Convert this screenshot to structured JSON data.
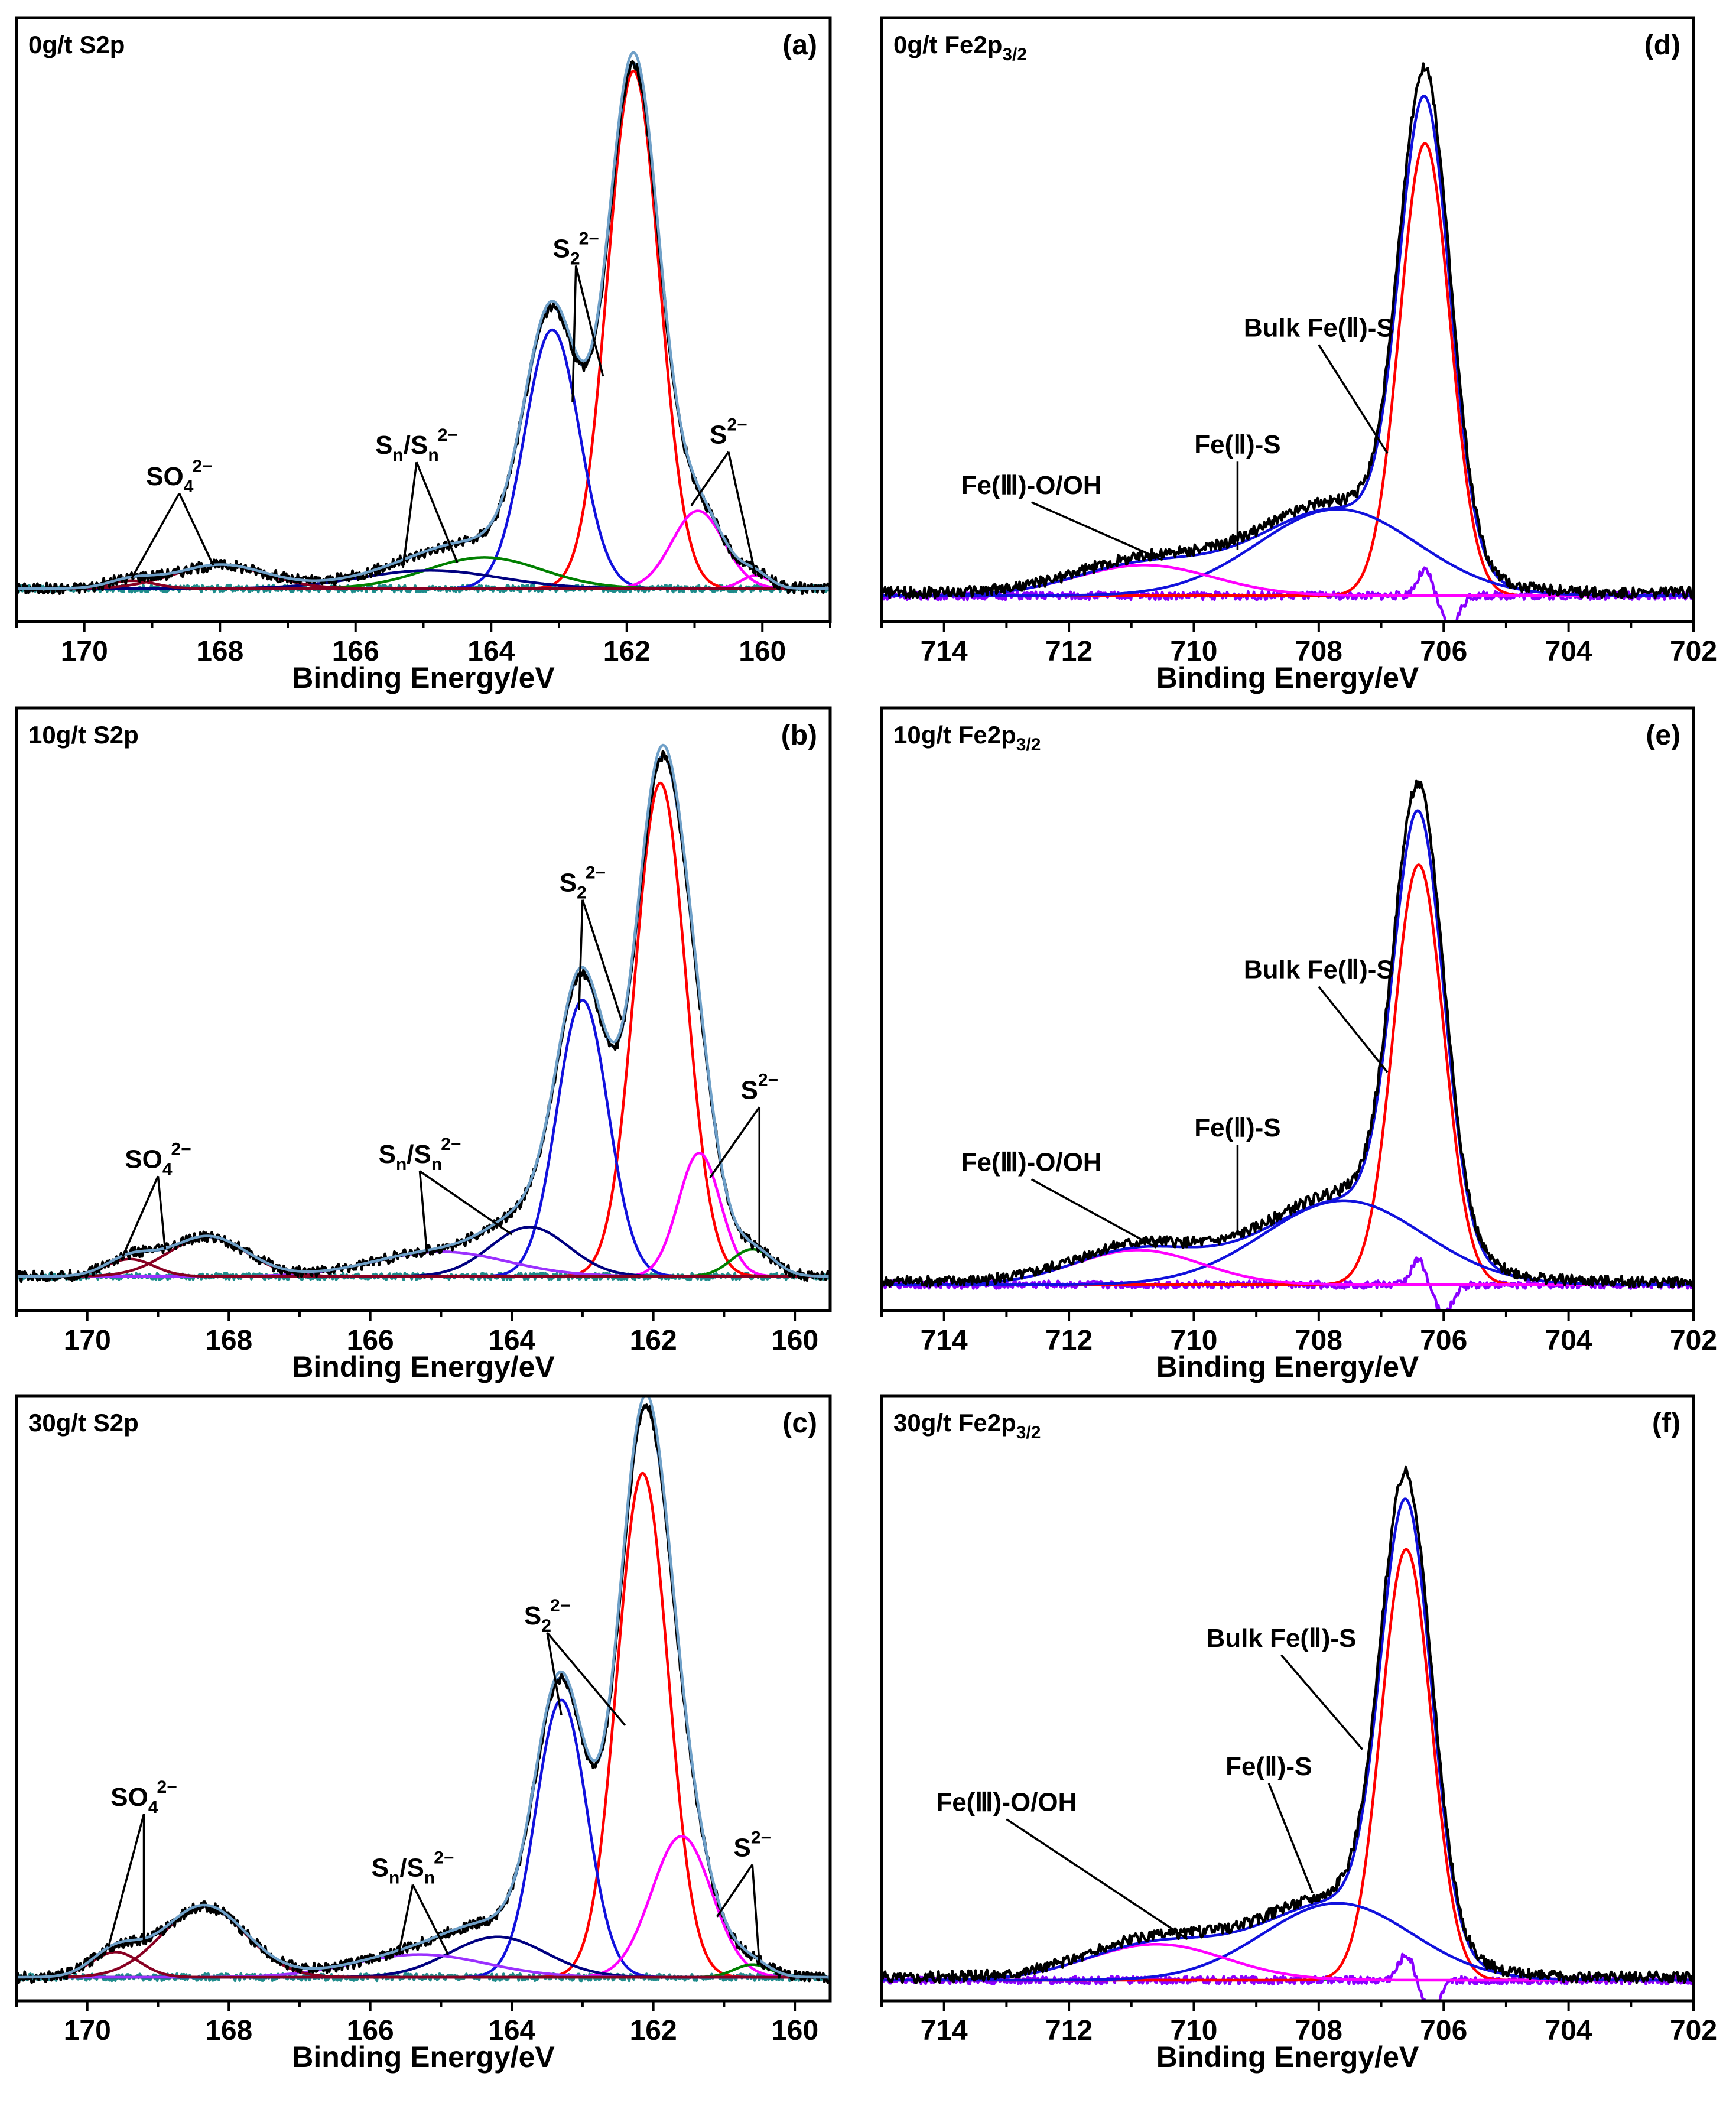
{
  "colors": {
    "raw": "#000000",
    "envelope": "#2f5f9a",
    "residual": "#1e8c8c",
    "baseline": "#1a8a1a",
    "red": "#ff0000",
    "blue": "#1111dd",
    "magenta": "#ff00ff",
    "green": "#008000",
    "darkred": "#880022",
    "navy": "#000080",
    "violet": "#9b30ff",
    "purple": "#8a00ff"
  },
  "chart_data": [
    {
      "type": "line",
      "id": "a",
      "letter": "(a)",
      "title": "0g/t S2p",
      "title_main": "0g/t S2p",
      "title_sub": "",
      "xlabel": "Binding Energy/eV",
      "xlim": [
        171,
        159
      ],
      "ylim": [
        0,
        100
      ],
      "xticks": [
        170,
        168,
        166,
        164,
        162,
        160
      ],
      "peaks": [
        {
          "center": 161.9,
          "height": 100,
          "fwhm": 0.9,
          "color": "red"
        },
        {
          "center": 163.1,
          "height": 50,
          "fwhm": 0.95,
          "color": "blue"
        },
        {
          "center": 160.95,
          "height": 15,
          "fwhm": 0.9,
          "color": "magenta"
        },
        {
          "center": 160.1,
          "height": 2.5,
          "fwhm": 0.5,
          "color": "magenta"
        },
        {
          "center": 164.1,
          "height": 6,
          "fwhm": 2.0,
          "color": "green"
        },
        {
          "center": 164.9,
          "height": 3.5,
          "fwhm": 2.4,
          "color": "navy"
        },
        {
          "center": 168.0,
          "height": 4.5,
          "fwhm": 1.6,
          "color": "darkred"
        },
        {
          "center": 169.3,
          "height": 1.5,
          "fwhm": 0.8,
          "color": "darkred"
        }
      ],
      "annotations": [
        {
          "label": "S",
          "sub": "2",
          "sup": "2−",
          "x": 162.75,
          "y": 64,
          "targets": [
            [
              162.8,
              36
            ],
            [
              162.35,
              41
            ]
          ]
        },
        {
          "label": "S",
          "sub": "",
          "sup": "2−",
          "x": 160.5,
          "y": 28,
          "targets": [
            [
              161.05,
              16
            ],
            [
              160.1,
              2.5
            ]
          ]
        },
        {
          "label": "S",
          "sub": "n",
          "sup": "",
          "x2label": "S",
          "sub2": "n",
          "sup2": "2−",
          "x": 165.1,
          "y": 26,
          "targets": [
            [
              165.3,
              4
            ],
            [
              164.5,
              5
            ]
          ]
        },
        {
          "label": "SO",
          "sub": "4",
          "sup": "2−",
          "x": 168.6,
          "y": 20,
          "targets": [
            [
              169.3,
              2
            ],
            [
              168.1,
              4.5
            ]
          ]
        }
      ]
    },
    {
      "type": "line",
      "id": "b",
      "letter": "(b)",
      "title": "10g/t S2p",
      "title_main": "10g/t S2p",
      "title_sub": "",
      "xlabel": "Binding Energy/eV",
      "xlim": [
        171,
        159.5
      ],
      "ylim": [
        0,
        100
      ],
      "xticks": [
        170,
        168,
        166,
        164,
        162,
        160
      ],
      "peaks": [
        {
          "center": 161.9,
          "height": 100,
          "fwhm": 0.85,
          "color": "red"
        },
        {
          "center": 163.0,
          "height": 56,
          "fwhm": 0.85,
          "color": "blue"
        },
        {
          "center": 161.35,
          "height": 25,
          "fwhm": 0.7,
          "color": "magenta"
        },
        {
          "center": 160.6,
          "height": 5.5,
          "fwhm": 0.7,
          "color": "green"
        },
        {
          "center": 163.75,
          "height": 10,
          "fwhm": 1.3,
          "color": "navy"
        },
        {
          "center": 165.0,
          "height": 5,
          "fwhm": 2.2,
          "color": "violet"
        },
        {
          "center": 168.3,
          "height": 8,
          "fwhm": 1.3,
          "color": "darkred"
        },
        {
          "center": 169.4,
          "height": 3.5,
          "fwhm": 0.8,
          "color": "darkred"
        }
      ],
      "annotations": [
        {
          "label": "S",
          "sub": "2",
          "sup": "2−",
          "x": 163.0,
          "y": 78,
          "targets": [
            [
              163.05,
              54
            ],
            [
              162.45,
              52
            ]
          ]
        },
        {
          "label": "S",
          "sub": "",
          "sup": "2−",
          "x": 160.5,
          "y": 36,
          "targets": [
            [
              161.2,
              20
            ],
            [
              160.5,
              6
            ]
          ]
        },
        {
          "label": "S",
          "sub": "n",
          "sup": "",
          "x2label": "S",
          "sub2": "n",
          "sup2": "2−",
          "x": 165.3,
          "y": 23,
          "targets": [
            [
              165.2,
              4.8
            ],
            [
              164.0,
              8.5
            ]
          ]
        },
        {
          "label": "SO",
          "sub": "4",
          "sup": "2−",
          "x": 169.0,
          "y": 22,
          "targets": [
            [
              169.5,
              4
            ],
            [
              168.9,
              5.5
            ]
          ]
        }
      ]
    },
    {
      "type": "line",
      "id": "c",
      "letter": "(c)",
      "title": "30g/t S2p",
      "title_main": "30g/t S2p",
      "title_sub": "",
      "xlabel": "Binding Energy/eV",
      "xlim": [
        171,
        159.5
      ],
      "ylim": [
        0,
        100
      ],
      "xticks": [
        170,
        168,
        166,
        164,
        162,
        160
      ],
      "peaks": [
        {
          "center": 162.15,
          "height": 100,
          "fwhm": 0.85,
          "color": "red"
        },
        {
          "center": 163.3,
          "height": 55,
          "fwhm": 0.85,
          "color": "blue"
        },
        {
          "center": 161.6,
          "height": 28,
          "fwhm": 1.0,
          "color": "magenta"
        },
        {
          "center": 160.6,
          "height": 2.5,
          "fwhm": 0.6,
          "color": "green"
        },
        {
          "center": 164.2,
          "height": 8,
          "fwhm": 1.6,
          "color": "navy"
        },
        {
          "center": 165.3,
          "height": 4.5,
          "fwhm": 2.2,
          "color": "violet"
        },
        {
          "center": 168.35,
          "height": 14,
          "fwhm": 1.4,
          "color": "darkred"
        },
        {
          "center": 169.6,
          "height": 5,
          "fwhm": 0.8,
          "color": "darkred"
        }
      ],
      "annotations": [
        {
          "label": "S",
          "sub": "2",
          "sup": "2−",
          "x": 163.5,
          "y": 70,
          "targets": [
            [
              163.3,
              52
            ],
            [
              162.4,
              50
            ]
          ]
        },
        {
          "label": "S",
          "sub": "",
          "sup": "2−",
          "x": 160.6,
          "y": 24,
          "targets": [
            [
              161.1,
              12
            ],
            [
              160.5,
              2.5
            ]
          ]
        },
        {
          "label": "S",
          "sub": "n",
          "sup": "",
          "x2label": "S",
          "sub2": "n",
          "sup2": "2−",
          "x": 165.4,
          "y": 20,
          "targets": [
            [
              165.6,
              4.5
            ],
            [
              164.9,
              4.5
            ]
          ]
        },
        {
          "label": "SO",
          "sub": "4",
          "sup": "2−",
          "x": 169.2,
          "y": 34,
          "targets": [
            [
              169.7,
              6
            ],
            [
              169.2,
              7
            ]
          ]
        }
      ]
    },
    {
      "type": "line",
      "id": "d",
      "letter": "(d)",
      "title": "0g/t Fe2p3/2",
      "title_main": "0g/t Fe2p",
      "title_sub": "3/2",
      "xlabel": "Binding Energy/eV",
      "xlim": [
        715,
        702
      ],
      "ylim": [
        -3,
        100
      ],
      "xticks": [
        714,
        712,
        710,
        708,
        706,
        704,
        702
      ],
      "peaks": [
        {
          "center": 706.3,
          "height": 89,
          "fwhm": 0.95,
          "color": "red"
        },
        {
          "center": 707.7,
          "height": 17,
          "fwhm": 3.0,
          "color": "blue"
        },
        {
          "center": 710.8,
          "height": 6,
          "fwhm": 2.6,
          "color": "magenta"
        }
      ],
      "annotations": [
        {
          "label": "Bulk Fe(Ⅱ)-S",
          "x": 708.0,
          "y": 51,
          "targets": [
            [
              706.9,
              28
            ]
          ]
        },
        {
          "label": "Fe(Ⅱ)-S",
          "x": 709.3,
          "y": 28,
          "targets": [
            [
              709.3,
              9
            ]
          ]
        },
        {
          "label": "Fe(Ⅲ)-O/OH",
          "x": 712.6,
          "y": 20,
          "targets": [
            [
              710.5,
              7
            ]
          ]
        }
      ]
    },
    {
      "type": "line",
      "id": "e",
      "letter": "(e)",
      "title": "10g/t Fe2p3/2",
      "title_main": "10g/t Fe2p",
      "title_sub": "3/2",
      "xlabel": "Binding Energy/eV",
      "xlim": [
        715,
        702
      ],
      "ylim": [
        -3,
        100
      ],
      "xticks": [
        714,
        712,
        710,
        708,
        706,
        704,
        702
      ],
      "peaks": [
        {
          "center": 706.4,
          "height": 85,
          "fwhm": 0.95,
          "color": "red"
        },
        {
          "center": 707.6,
          "height": 17,
          "fwhm": 3.0,
          "color": "blue"
        },
        {
          "center": 710.9,
          "height": 7,
          "fwhm": 2.4,
          "color": "magenta"
        }
      ],
      "annotations": [
        {
          "label": "Bulk Fe(Ⅱ)-S",
          "x": 708.0,
          "y": 62,
          "targets": [
            [
              706.9,
              43
            ]
          ]
        },
        {
          "label": "Fe(Ⅱ)-S",
          "x": 709.3,
          "y": 30,
          "targets": [
            [
              709.3,
              10
            ]
          ]
        },
        {
          "label": "Fe(Ⅲ)-O/OH",
          "x": 712.6,
          "y": 23,
          "targets": [
            [
              710.6,
              7.5
            ]
          ]
        }
      ]
    },
    {
      "type": "line",
      "id": "f",
      "letter": "(f)",
      "title": "30g/t Fe2p3/2",
      "title_main": "30g/t  Fe2p",
      "title_sub": "3/2",
      "xlabel": "Binding Energy/eV",
      "xlim": [
        715,
        702
      ],
      "ylim": [
        -3,
        100
      ],
      "xticks": [
        714,
        712,
        710,
        708,
        706,
        704,
        702
      ],
      "peaks": [
        {
          "center": 706.6,
          "height": 84,
          "fwhm": 0.95,
          "color": "red"
        },
        {
          "center": 707.7,
          "height": 15,
          "fwhm": 2.8,
          "color": "blue"
        },
        {
          "center": 710.6,
          "height": 7,
          "fwhm": 2.6,
          "color": "magenta"
        }
      ],
      "annotations": [
        {
          "label": "Bulk Fe(Ⅱ)-S",
          "x": 708.6,
          "y": 65,
          "targets": [
            [
              707.3,
              45
            ]
          ]
        },
        {
          "label": "Fe(Ⅱ)-S",
          "x": 708.8,
          "y": 40,
          "targets": [
            [
              708.1,
              17
            ]
          ]
        },
        {
          "label": "Fe(Ⅲ)-O/OH",
          "x": 713.0,
          "y": 33,
          "targets": [
            [
              710.1,
              8
            ]
          ]
        }
      ]
    }
  ]
}
